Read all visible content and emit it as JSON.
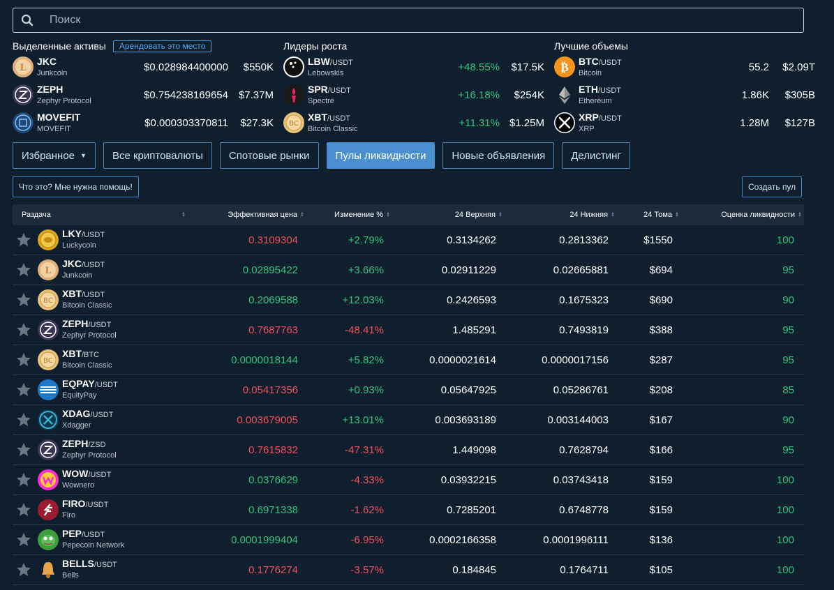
{
  "search": {
    "placeholder": "Поиск"
  },
  "featured": {
    "title": "Выделенные активы",
    "rent_label": "Арендовать это место",
    "items": [
      {
        "symbol": "JKC",
        "pair": "",
        "name": "Junkcoin",
        "price": "$0.028984400000",
        "volume": "$550K",
        "icon": "junkcoin-icon"
      },
      {
        "symbol": "ZEPH",
        "pair": "",
        "name": "Zephyr Protocol",
        "price": "$0.754238169654",
        "volume": "$7.37M",
        "icon": "zephyr-icon"
      },
      {
        "symbol": "MOVEFIT",
        "pair": "",
        "name": "MOVEFIT",
        "price": "$0.000303370811",
        "volume": "$27.3K",
        "icon": "movefit-icon"
      }
    ]
  },
  "gainers": {
    "title": "Лидеры роста",
    "items": [
      {
        "symbol": "LBW",
        "pair": "/USDT",
        "name": "Lebowskis",
        "change": "+48.55%",
        "volume": "$17.5K",
        "icon": "lebowskis-icon"
      },
      {
        "symbol": "SPR",
        "pair": "/USDT",
        "name": "Spectre",
        "change": "+16.18%",
        "volume": "$254K",
        "icon": "spectre-icon"
      },
      {
        "symbol": "XBT",
        "pair": "/USDT",
        "name": "Bitcoin Classic",
        "change": "+11.31%",
        "volume": "$1.25M",
        "icon": "bitcoin-classic-icon"
      }
    ]
  },
  "volumes": {
    "title": "Лучшие объемы",
    "items": [
      {
        "symbol": "BTC",
        "pair": "/USDT",
        "name": "Bitcoin",
        "amount": "55.2",
        "volume": "$2.09T",
        "icon": "bitcoin-icon"
      },
      {
        "symbol": "ETH",
        "pair": "/USDT",
        "name": "Ethereum",
        "amount": "1.86K",
        "volume": "$305B",
        "icon": "ethereum-icon"
      },
      {
        "symbol": "XRP",
        "pair": "/USDT",
        "name": "XRP",
        "amount": "1.28M",
        "volume": "$127B",
        "icon": "xrp-icon"
      }
    ]
  },
  "tabs": [
    {
      "label": "Избранное",
      "active": false,
      "dropdown": true
    },
    {
      "label": "Все криптовалюты",
      "active": false
    },
    {
      "label": "Спотовые рынки",
      "active": false
    },
    {
      "label": "Пулы ликвидности",
      "active": true
    },
    {
      "label": "Новые объявления",
      "active": false
    },
    {
      "label": "Делистинг",
      "active": false
    }
  ],
  "help_label": "Что это? Мне нужна помощь!",
  "create_pool_label": "Создать пул",
  "table": {
    "headers": {
      "pair": "Раздача",
      "price": "Эффективная цена",
      "change": "Изменение %",
      "high": "24 Верхняя",
      "low": "24 Нижняя",
      "volume": "24 Тома",
      "score": "Оценка ликвидности"
    },
    "rows": [
      {
        "symbol": "LKY",
        "pair": "/USDT",
        "name": "Luckycoin",
        "price": "0.3109304",
        "price_dir": "down",
        "change": "+2.79%",
        "high": "0.3134262",
        "low": "0.2813362",
        "volume": "$1550",
        "score": "100",
        "icon": "luckycoin-icon"
      },
      {
        "symbol": "JKC",
        "pair": "/USDT",
        "name": "Junkcoin",
        "price": "0.02895422",
        "price_dir": "up",
        "change": "+3.66%",
        "high": "0.02911229",
        "low": "0.02665881",
        "volume": "$694",
        "score": "95",
        "icon": "junkcoin-icon"
      },
      {
        "symbol": "XBT",
        "pair": "/USDT",
        "name": "Bitcoin Classic",
        "price": "0.2069588",
        "price_dir": "up",
        "change": "+12.03%",
        "high": "0.2426593",
        "low": "0.1675323",
        "volume": "$690",
        "score": "90",
        "icon": "bitcoin-classic-icon"
      },
      {
        "symbol": "ZEPH",
        "pair": "/USDT",
        "name": "Zephyr Protocol",
        "price": "0.7687763",
        "price_dir": "down",
        "change": "-48.41%",
        "high": "1.485291",
        "low": "0.7493819",
        "volume": "$388",
        "score": "95",
        "icon": "zephyr-icon"
      },
      {
        "symbol": "XBT",
        "pair": "/BTC",
        "name": "Bitcoin Classic",
        "price": "0.0000018144",
        "price_dir": "up",
        "change": "+5.82%",
        "high": "0.0000021614",
        "low": "0.0000017156",
        "volume": "$287",
        "score": "95",
        "icon": "bitcoin-classic-icon"
      },
      {
        "symbol": "EQPAY",
        "pair": "/USDT",
        "name": "EquityPay",
        "price": "0.05417356",
        "price_dir": "down",
        "change": "+0.93%",
        "high": "0.05647925",
        "low": "0.05286761",
        "volume": "$208",
        "score": "85",
        "icon": "equitypay-icon"
      },
      {
        "symbol": "XDAG",
        "pair": "/USDT",
        "name": "Xdagger",
        "price": "0.003679005",
        "price_dir": "down",
        "change": "+13.01%",
        "high": "0.003693189",
        "low": "0.003144003",
        "volume": "$167",
        "score": "90",
        "icon": "xdagger-icon"
      },
      {
        "symbol": "ZEPH",
        "pair": "/ZSD",
        "name": "Zephyr Protocol",
        "price": "0.7615832",
        "price_dir": "down",
        "change": "-47.31%",
        "high": "1.449098",
        "low": "0.7628794",
        "volume": "$166",
        "score": "95",
        "icon": "zephyr-icon"
      },
      {
        "symbol": "WOW",
        "pair": "/USDT",
        "name": "Wownero",
        "price": "0.0376629",
        "price_dir": "up",
        "change": "-4.33%",
        "high": "0.03932215",
        "low": "0.03743418",
        "volume": "$159",
        "score": "100",
        "icon": "wownero-icon"
      },
      {
        "symbol": "FIRO",
        "pair": "/USDT",
        "name": "Firo",
        "price": "0.6971338",
        "price_dir": "up",
        "change": "-1.62%",
        "high": "0.7285201",
        "low": "0.6748778",
        "volume": "$159",
        "score": "100",
        "icon": "firo-icon"
      },
      {
        "symbol": "PEP",
        "pair": "/USDT",
        "name": "Pepecoin Network",
        "price": "0.0001999404",
        "price_dir": "up",
        "change": "-6.95%",
        "high": "0.0002166358",
        "low": "0.0001996111",
        "volume": "$136",
        "score": "100",
        "icon": "pepecoin-icon"
      },
      {
        "symbol": "BELLS",
        "pair": "/USDT",
        "name": "Bells",
        "price": "0.1776274",
        "price_dir": "down",
        "change": "-3.57%",
        "high": "0.184845",
        "low": "0.1764711",
        "volume": "$105",
        "score": "100",
        "icon": "bells-icon"
      }
    ]
  },
  "colors": {
    "background": "#0f1f2e",
    "green": "#2fc47a",
    "red": "#f24e5b",
    "accent": "#4a90d0"
  }
}
